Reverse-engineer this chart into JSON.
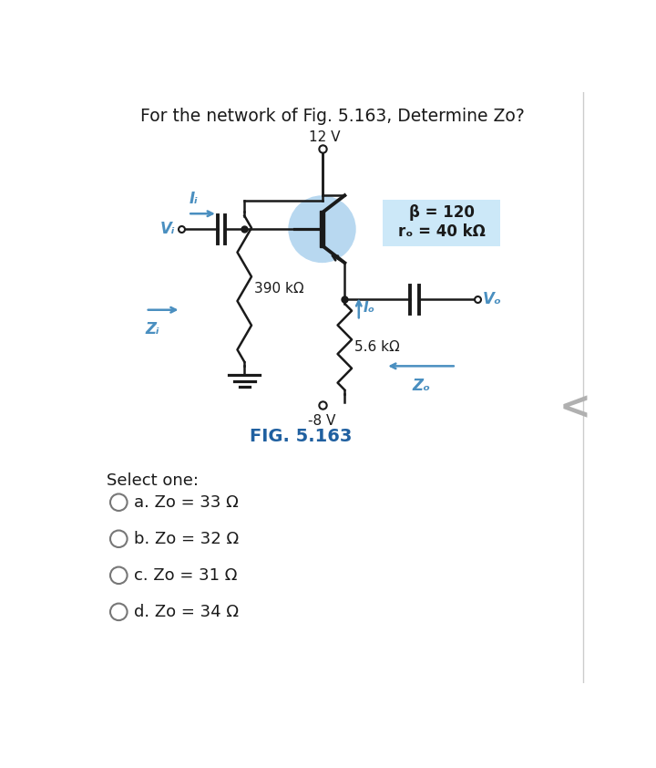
{
  "title": "For the network of Fig. 5.163, Determine Zo?",
  "fig_label": "FIG. 5.163",
  "vcc": "12 V",
  "vee": "-8 V",
  "beta_line1": "β = 120",
  "beta_line2": "rₒ = 40 kΩ",
  "R1": "390 kΩ",
  "RE": "5.6 kΩ",
  "Vi_label": "Vᵢ",
  "Ii_label": "Iᵢ",
  "Io_label": "Iₒ",
  "Vo_label": "Vₒ",
  "Zi_label": "Zᵢ",
  "Zo_label": "Zₒ",
  "select_one": "Select one:",
  "options": [
    "a. Zo = 33 Ω",
    "b. Zo = 32 Ω",
    "c. Zo = 31 Ω",
    "d. Zo = 34 Ω"
  ],
  "bg_color": "#ffffff",
  "circuit_color": "#1a1a1a",
  "transistor_fill": "#b8d8f0",
  "label_color_blue": "#4a8fc0",
  "fig_label_color": "#2060a0",
  "text_color": "#1a1a1a",
  "box_fill": "#cce8f8",
  "box_edge": "#aaaaaa"
}
